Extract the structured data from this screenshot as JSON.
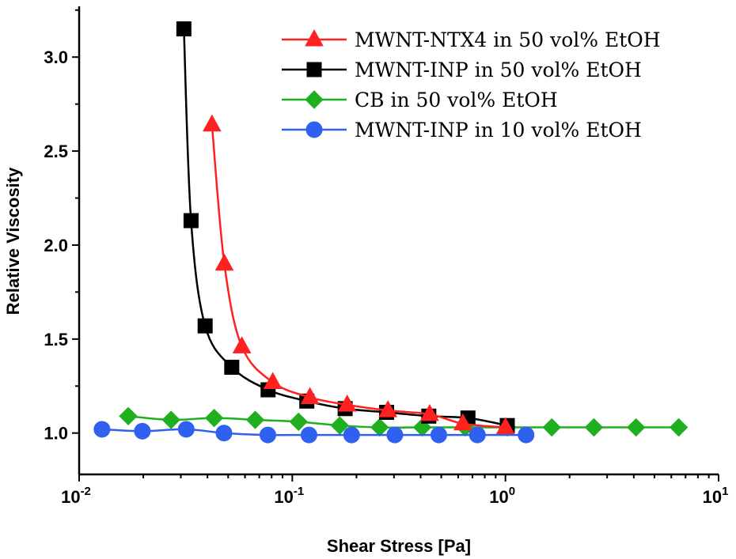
{
  "chart_data": {
    "type": "line",
    "title": "",
    "xlabel": "Shear Stress [Pa]",
    "ylabel": "Relative Viscosity",
    "xscale": "log",
    "xlim": [
      0.01,
      10
    ],
    "ylim": [
      0.78,
      3.27
    ],
    "x_ticks": [
      {
        "value": 0.01,
        "base": "10",
        "exp": "-2"
      },
      {
        "value": 0.1,
        "base": "10",
        "exp": "-1"
      },
      {
        "value": 1,
        "base": "10",
        "exp": "0"
      },
      {
        "value": 10,
        "base": "10",
        "exp": "1"
      }
    ],
    "y_ticks": [
      {
        "value": 1.0,
        "label": "1.0"
      },
      {
        "value": 1.5,
        "label": "1.5"
      },
      {
        "value": 2.0,
        "label": "2.0"
      },
      {
        "value": 2.5,
        "label": "2.5"
      },
      {
        "value": 3.0,
        "label": "3.0"
      }
    ],
    "grid": false,
    "legend_position": "top-right",
    "series": [
      {
        "name": "MWNT-NTX4 in 50 vol% EtOH",
        "color": "#ff2020",
        "marker": "triangle",
        "x": [
          0.042,
          0.048,
          0.058,
          0.081,
          0.121,
          0.181,
          0.281,
          0.441,
          0.631,
          1.0
        ],
        "y": [
          2.64,
          1.9,
          1.46,
          1.27,
          1.19,
          1.15,
          1.12,
          1.1,
          1.05,
          1.03
        ]
      },
      {
        "name": "MWNT-INP in 50 vol% EtOH",
        "color": "#000000",
        "marker": "square",
        "x": [
          0.031,
          0.0335,
          0.039,
          0.052,
          0.077,
          0.117,
          0.177,
          0.277,
          0.437,
          0.667,
          1.02
        ],
        "y": [
          3.15,
          2.13,
          1.57,
          1.35,
          1.23,
          1.17,
          1.13,
          1.11,
          1.09,
          1.08,
          1.04
        ]
      },
      {
        "name": "CB in 50 vol% EtOH",
        "color": "#1fb01f",
        "marker": "diamond",
        "x": [
          0.017,
          0.027,
          0.043,
          0.067,
          0.107,
          0.167,
          0.257,
          0.407,
          0.647,
          1.02,
          1.65,
          2.6,
          4.1,
          6.5
        ],
        "y": [
          1.09,
          1.07,
          1.08,
          1.07,
          1.06,
          1.04,
          1.03,
          1.03,
          1.03,
          1.03,
          1.03,
          1.03,
          1.03,
          1.03
        ]
      },
      {
        "name": "MWNT-INP in 10 vol% EtOH",
        "color": "#3060f0",
        "marker": "circle",
        "x": [
          0.0128,
          0.0198,
          0.0318,
          0.0478,
          0.0768,
          0.1198,
          0.1898,
          0.3028,
          0.4868,
          0.7388,
          1.25
        ],
        "y": [
          1.02,
          1.01,
          1.02,
          1.0,
          0.99,
          0.99,
          0.99,
          0.99,
          0.99,
          0.99,
          0.99
        ]
      }
    ]
  }
}
